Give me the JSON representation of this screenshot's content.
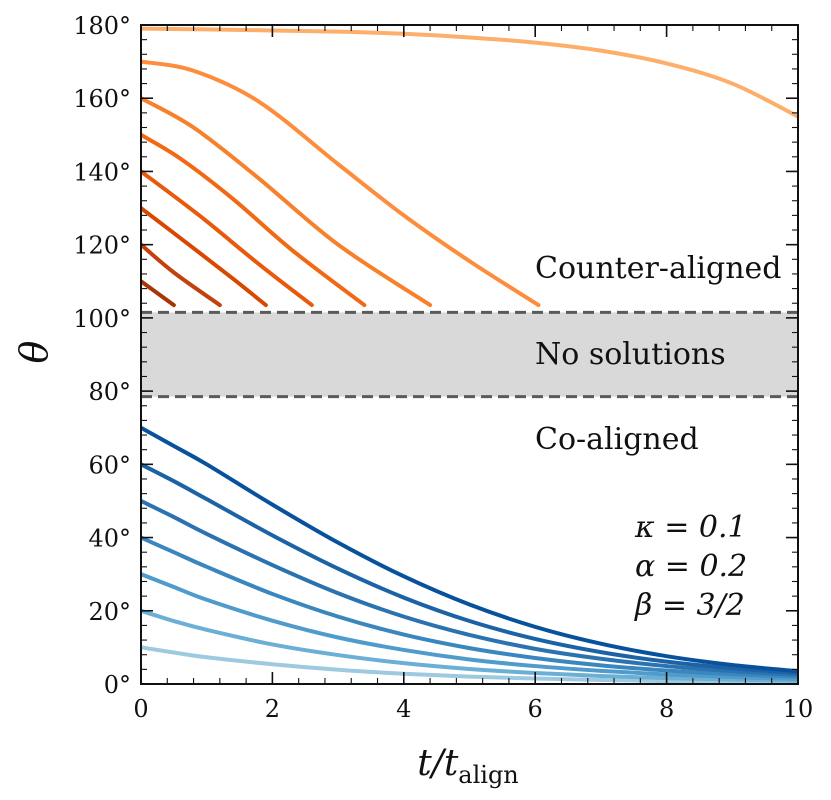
{
  "chart_data": {
    "type": "line",
    "xlabel": "t/t",
    "xlabel_sub": "align",
    "ylabel": "θ",
    "xlim": [
      0,
      10
    ],
    "ylim": [
      0,
      180
    ],
    "x_ticks": [
      "0",
      "2",
      "4",
      "6",
      "8",
      "10"
    ],
    "y_ticks": [
      "0°",
      "20°",
      "40°",
      "60°",
      "80°",
      "100°",
      "120°",
      "140°",
      "160°",
      "180°"
    ],
    "no_solution_band": [
      78.5,
      101.5
    ],
    "region_labels": {
      "counter": "Counter-aligned",
      "none": "No solutions",
      "co": "Co-aligned"
    },
    "params": {
      "kappa": "κ = 0.1",
      "alpha": "α = 0.2",
      "beta": "β = 3/2"
    },
    "colors": {
      "band": "#d9d9d9",
      "band_edge": "#5a5a5a",
      "counter": [
        "#a63603",
        "#c2410c",
        "#d94801",
        "#e8590c",
        "#f16913",
        "#f7812b",
        "#fd8d3c",
        "#fdae6b"
      ],
      "co": [
        "#9ecae1",
        "#6baed6",
        "#4f9bcb",
        "#3a86bf",
        "#2b73b0",
        "#1c63a6",
        "#08519c",
        "#084594"
      ]
    },
    "counter_series": [
      {
        "x": [
          0,
          0.5
        ],
        "y": [
          110,
          103.5
        ]
      },
      {
        "x": [
          0,
          0.5,
          1.2
        ],
        "y": [
          120,
          112.4,
          103.5
        ]
      },
      {
        "x": [
          0,
          0.7,
          1.4,
          1.9
        ],
        "y": [
          130,
          120.4,
          110.7,
          103.5
        ]
      },
      {
        "x": [
          0,
          0.9,
          1.8,
          2.6
        ],
        "y": [
          140,
          127.8,
          114.6,
          103.5
        ]
      },
      {
        "x": [
          0,
          0.6,
          1.4,
          2.3,
          3.4
        ],
        "y": [
          150,
          143.5,
          132.5,
          118.5,
          103.5
        ]
      },
      {
        "x": [
          0,
          0.8,
          1.8,
          3.0,
          4.4
        ],
        "y": [
          160,
          152,
          138,
          120,
          103.5
        ]
      },
      {
        "x": [
          0,
          0.8,
          1.8,
          3.0,
          4.0,
          5.0,
          6.05
        ],
        "y": [
          170,
          167.5,
          159,
          142,
          128,
          115.5,
          103.5
        ]
      },
      {
        "x": [
          0,
          1,
          2,
          3,
          4,
          5,
          6,
          7,
          8,
          9,
          10
        ],
        "y": [
          179,
          178.8,
          178.5,
          178.2,
          177.6,
          176.6,
          175.2,
          173,
          169.5,
          164,
          155
        ]
      }
    ],
    "co_series": [
      {
        "x": [
          0,
          0.5,
          1,
          2,
          3,
          4,
          5,
          6,
          7,
          8,
          9,
          10
        ],
        "y": [
          10,
          8.6,
          7.3,
          5.4,
          3.9,
          2.8,
          2.0,
          1.5,
          1.1,
          0.8,
          0.6,
          0.4
        ]
      },
      {
        "x": [
          0,
          0.5,
          1,
          2,
          3,
          4,
          5,
          6,
          7,
          8,
          9,
          10
        ],
        "y": [
          20,
          17.2,
          14.8,
          10.8,
          7.9,
          5.7,
          4.1,
          3.0,
          2.2,
          1.6,
          1.2,
          0.9
        ]
      },
      {
        "x": [
          0,
          0.5,
          1,
          2,
          3,
          4,
          5,
          6,
          7,
          8,
          9,
          10
        ],
        "y": [
          30,
          26.5,
          23,
          17.3,
          12.7,
          9.3,
          6.7,
          4.9,
          3.6,
          2.6,
          1.9,
          1.4
        ]
      },
      {
        "x": [
          0,
          0.5,
          1,
          2,
          3,
          4,
          5,
          6,
          7,
          8,
          9,
          10
        ],
        "y": [
          40,
          36,
          32,
          24.6,
          18.4,
          13.5,
          9.8,
          7.1,
          5.1,
          3.7,
          2.7,
          2.0
        ]
      },
      {
        "x": [
          0,
          0.5,
          1,
          2,
          3,
          4,
          5,
          6,
          7,
          8,
          9,
          10
        ],
        "y": [
          50,
          45.6,
          41,
          32.5,
          24.8,
          18.4,
          13.4,
          9.6,
          6.9,
          4.9,
          3.5,
          2.5
        ]
      },
      {
        "x": [
          0,
          0.5,
          1,
          2,
          3,
          4,
          5,
          6,
          7,
          8,
          9,
          10
        ],
        "y": [
          60,
          55.4,
          50.5,
          40.6,
          31.5,
          23.6,
          17.2,
          12.3,
          8.7,
          6.1,
          4.3,
          3.0
        ]
      },
      {
        "x": [
          0,
          0.5,
          1,
          2,
          3,
          4,
          5,
          6,
          7,
          8,
          9,
          10
        ],
        "y": [
          70,
          65,
          60,
          49,
          38.6,
          29.4,
          21.7,
          15.6,
          11,
          7.6,
          5.2,
          3.5
        ]
      }
    ]
  }
}
